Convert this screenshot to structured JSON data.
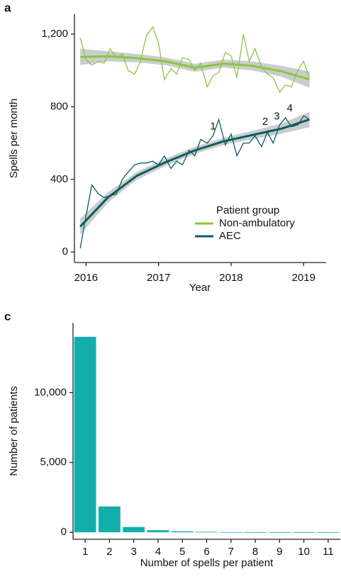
{
  "chart_data": [
    {
      "type": "line",
      "panel_label": "a",
      "x_label": "Year",
      "y_label": "Spells per month",
      "xlim": [
        2015.84,
        2019.31
      ],
      "xticks": [
        2016,
        2017,
        2018,
        2019
      ],
      "ylim": [
        -58,
        1310
      ],
      "yticks": [
        0,
        400,
        800,
        {
          "value": 1200,
          "label": "1,200"
        }
      ],
      "grid": false,
      "legend_title": "Patient group",
      "legend_position": "bottom-right",
      "x": [
        2015.92,
        2016,
        2016.08,
        2016.17,
        2016.25,
        2016.33,
        2016.42,
        2016.5,
        2016.58,
        2016.67,
        2016.75,
        2016.83,
        2016.92,
        2017,
        2017.08,
        2017.17,
        2017.25,
        2017.33,
        2017.42,
        2017.5,
        2017.58,
        2017.67,
        2017.75,
        2017.83,
        2017.92,
        2018,
        2018.08,
        2018.17,
        2018.25,
        2018.33,
        2018.42,
        2018.5,
        2018.58,
        2018.67,
        2018.75,
        2018.83,
        2018.92,
        2019,
        2019.08
      ],
      "trend_x": [
        2015.92,
        2016.3,
        2016.7,
        2017.1,
        2017.5,
        2017.9,
        2018.3,
        2018.7,
        2019.08
      ],
      "series": [
        {
          "name": "Non-ambulatory",
          "color": "#8cc63f",
          "values": [
            1180,
            1060,
            1030,
            1050,
            1040,
            1120,
            1070,
            1090,
            1000,
            980,
            1050,
            1190,
            1240,
            1150,
            950,
            1010,
            980,
            1070,
            1060,
            1000,
            1040,
            910,
            970,
            990,
            1100,
            1080,
            960,
            1200,
            1050,
            1120,
            1020,
            980,
            960,
            880,
            920,
            910,
            1000,
            1050,
            960
          ],
          "trend": [
            1075,
            1078,
            1068,
            1050,
            1015,
            1038,
            1025,
            995,
            950
          ],
          "trend_lower": [
            1030,
            1050,
            1045,
            1028,
            993,
            1016,
            1000,
            965,
            905
          ],
          "trend_upper": [
            1120,
            1106,
            1091,
            1072,
            1037,
            1060,
            1050,
            1025,
            995
          ]
        },
        {
          "name": "AEC",
          "color": "#0e5c63",
          "values": [
            20,
            200,
            370,
            320,
            300,
            310,
            320,
            400,
            440,
            480,
            490,
            490,
            500,
            480,
            530,
            460,
            500,
            480,
            560,
            530,
            620,
            600,
            640,
            730,
            590,
            650,
            530,
            600,
            600,
            640,
            580,
            660,
            600,
            700,
            740,
            690,
            700,
            750,
            730
          ],
          "trend": [
            140,
            300,
            420,
            495,
            560,
            610,
            645,
            680,
            730
          ],
          "trend_lower": [
            95,
            272,
            398,
            475,
            540,
            590,
            622,
            652,
            688
          ],
          "trend_upper": [
            185,
            328,
            442,
            515,
            580,
            630,
            668,
            708,
            772
          ]
        }
      ],
      "annotations": [
        {
          "text": "1",
          "x": 2017.75,
          "y": 690
        },
        {
          "text": "2",
          "x": 2018.47,
          "y": 715
        },
        {
          "text": "3",
          "x": 2018.63,
          "y": 745
        },
        {
          "text": "4",
          "x": 2018.81,
          "y": 790
        }
      ]
    },
    {
      "type": "bar",
      "panel_label": "c",
      "x_label": "Number of spells per patient",
      "y_label": "Number of patients",
      "categories": [
        "1",
        "2",
        "3",
        "4",
        "5",
        "6",
        "7",
        "8",
        "9",
        "10",
        "11"
      ],
      "values": [
        14000,
        1850,
        380,
        150,
        70,
        30,
        15,
        10,
        8,
        5,
        5
      ],
      "color": "#13aeab",
      "ylim": [
        -500,
        15000
      ],
      "yticks": [
        0,
        {
          "value": 5000,
          "label": "5,000"
        },
        {
          "value": 10000,
          "label": "10,000"
        }
      ],
      "grid": false
    }
  ]
}
